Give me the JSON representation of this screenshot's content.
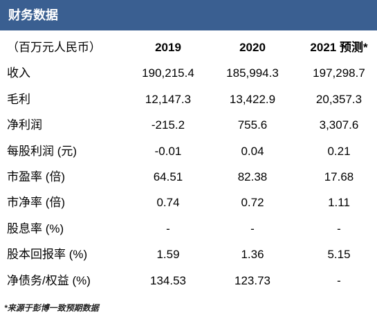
{
  "header": {
    "title": "财务数据"
  },
  "table": {
    "columns": [
      "（百万元人民币）",
      "2019",
      "2020",
      "2021 预测*"
    ],
    "rows": [
      [
        "收入",
        "190,215.4",
        "185,994.3",
        "197,298.7"
      ],
      [
        "毛利",
        "12,147.3",
        "13,422.9",
        "20,357.3"
      ],
      [
        "净利润",
        "-215.2",
        "755.6",
        "3,307.6"
      ],
      [
        "每股利润 (元)",
        "-0.01",
        "0.04",
        "0.21"
      ],
      [
        "市盈率 (倍)",
        "64.51",
        "82.38",
        "17.68"
      ],
      [
        "市净率 (倍)",
        "0.74",
        "0.72",
        "1.11"
      ],
      [
        "股息率 (%)",
        "-",
        "-",
        "-"
      ],
      [
        "股本回报率 (%)",
        "1.59",
        "1.36",
        "5.15"
      ],
      [
        "净债务/权益 (%)",
        "134.53",
        "123.73",
        "-"
      ]
    ]
  },
  "footnote": "*来源于彭博一致预期数据",
  "colors": {
    "header_bg": "#3a5f91",
    "header_text": "#ffffff"
  }
}
